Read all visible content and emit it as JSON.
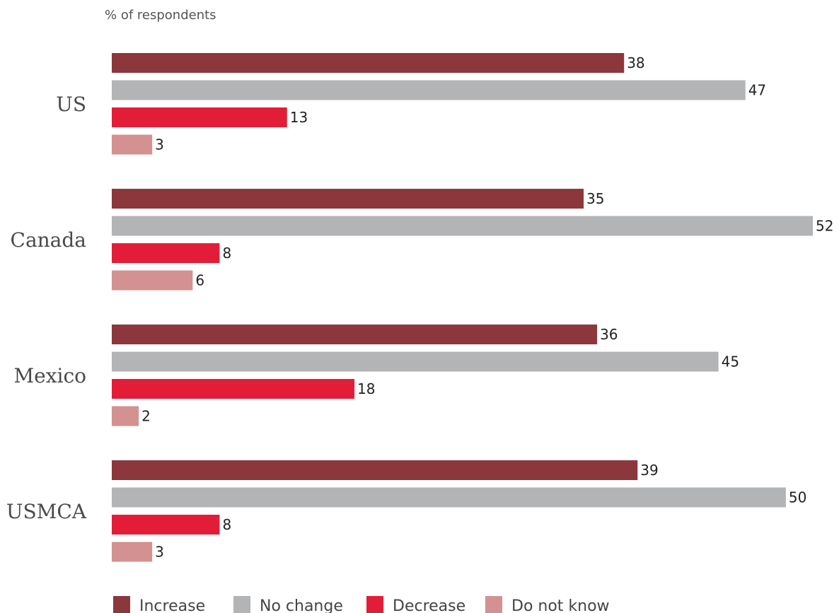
{
  "chart_data": {
    "type": "bar",
    "orientation": "horizontal",
    "subtitle": "% of respondents",
    "categories": [
      "US",
      "Canada",
      "Mexico",
      "USMCA"
    ],
    "series": [
      {
        "name": "Increase",
        "color": "#8b373c",
        "values": [
          38,
          35,
          36,
          39
        ]
      },
      {
        "name": "No change",
        "color": "#b2b4b5",
        "values": [
          47,
          52,
          45,
          50
        ]
      },
      {
        "name": "Decrease",
        "color": "#e31d38",
        "values": [
          13,
          8,
          18,
          8
        ]
      },
      {
        "name": "Do not know",
        "color": "#d49191",
        "values": [
          3,
          6,
          2,
          3
        ]
      }
    ],
    "xlim": [
      0,
      52
    ],
    "grid": false,
    "legend_position": "bottom-left"
  }
}
